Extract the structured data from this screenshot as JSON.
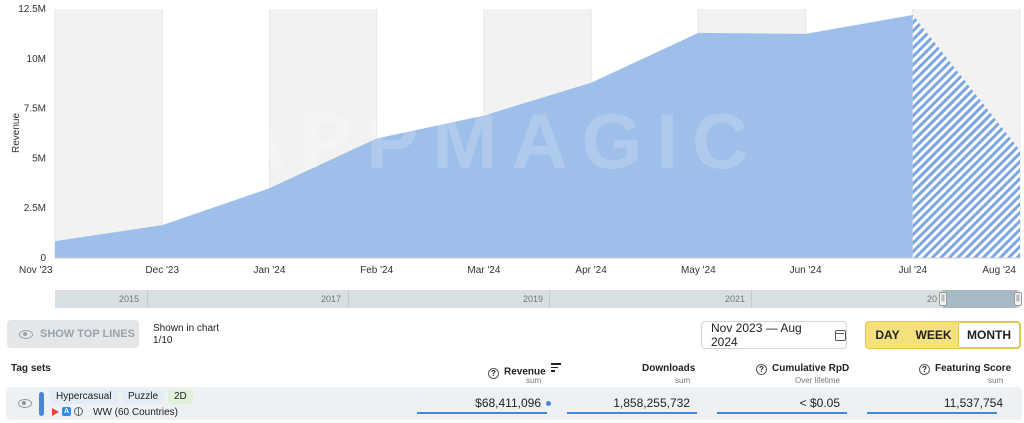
{
  "chart_data": {
    "type": "area",
    "ylabel": "Revenue",
    "x": [
      "Nov '23",
      "Dec '23",
      "Jan '24",
      "Feb '24",
      "Mar '24",
      "Apr '24",
      "May '24",
      "Jun '24",
      "Jul '24",
      "Aug '24"
    ],
    "values": [
      850000,
      1650000,
      3500000,
      6000000,
      7150000,
      8800000,
      11300000,
      11250000,
      12200000,
      5400000
    ],
    "forecast_from_index": 8,
    "ylim": [
      0,
      12500000
    ],
    "yticks": [
      "0",
      "2.5M",
      "5M",
      "7.5M",
      "10M",
      "12.5M"
    ],
    "grid": "vertical bands",
    "colors": {
      "area": "#9ebfe9",
      "band": "#f2f2f2",
      "forecast_hatch": "#7aa6e2"
    }
  },
  "watermark": "APPMAGIC",
  "navigator": {
    "years": [
      "2015",
      "2017",
      "2019",
      "2021",
      "20"
    ]
  },
  "controls": {
    "show_top_lines": "SHOW TOP LINES",
    "shown_in_chart_label": "Shown in chart",
    "shown_in_chart_count": "1/10",
    "date_range": "Nov 2023 — Aug 2024",
    "periods": [
      "DAY",
      "WEEK",
      "MONTH"
    ],
    "active_period": "MONTH"
  },
  "table": {
    "tag_sets_label": "Tag sets",
    "columns": [
      {
        "label": "Revenue",
        "sub": "sum"
      },
      {
        "label": "Downloads",
        "sub": "sum"
      },
      {
        "label": "Cumulative RpD",
        "sub": "Over lifetime"
      },
      {
        "label": "Featuring Score",
        "sub": "sum"
      }
    ],
    "row": {
      "tags": [
        "Hypercasual",
        "Puzzle",
        "2D"
      ],
      "countries": "WW (60 Countries)",
      "revenue": "$68,411,096",
      "downloads": "1,858,255,732",
      "rpd": "< $0.05",
      "featuring": "11,537,754"
    }
  }
}
